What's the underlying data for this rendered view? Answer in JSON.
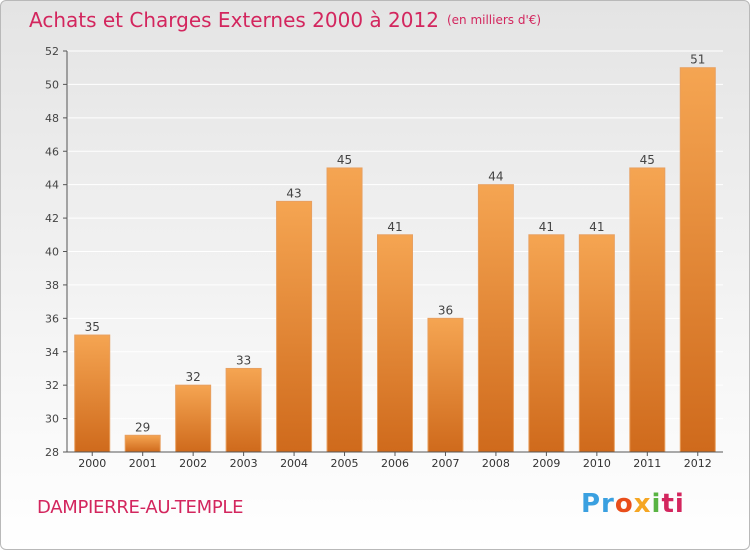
{
  "header": {
    "title": "Achats et Charges Externes 2000 à 2012",
    "subtitle": "(en milliers d'€)"
  },
  "footer": {
    "commune": "DAMPIERRE-AU-TEMPLE",
    "brand_parts": [
      "Pr",
      "o",
      "x",
      "i",
      "ti"
    ]
  },
  "colors": {
    "title": "#d3265e",
    "bar_top": "#f5a552",
    "bar_bottom": "#cf6a1c",
    "bar_stroke": "#e8a060",
    "axis": "#555555",
    "grid": "#ffffff"
  },
  "chart_data": {
    "type": "bar",
    "categories": [
      "2000",
      "2001",
      "2002",
      "2003",
      "2004",
      "2005",
      "2006",
      "2007",
      "2008",
      "2009",
      "2010",
      "2011",
      "2012"
    ],
    "values": [
      35,
      29,
      32,
      33,
      43,
      45,
      41,
      36,
      44,
      41,
      41,
      45,
      51
    ],
    "title": "Achats et Charges Externes 2000 à 2012",
    "subtitle": "(en milliers d'€)",
    "xlabel": "",
    "ylabel": "",
    "ylim": [
      28,
      52
    ],
    "yticks": [
      28,
      30,
      32,
      34,
      36,
      38,
      40,
      42,
      44,
      46,
      48,
      50,
      52
    ],
    "grid": true,
    "data_labels": true
  }
}
